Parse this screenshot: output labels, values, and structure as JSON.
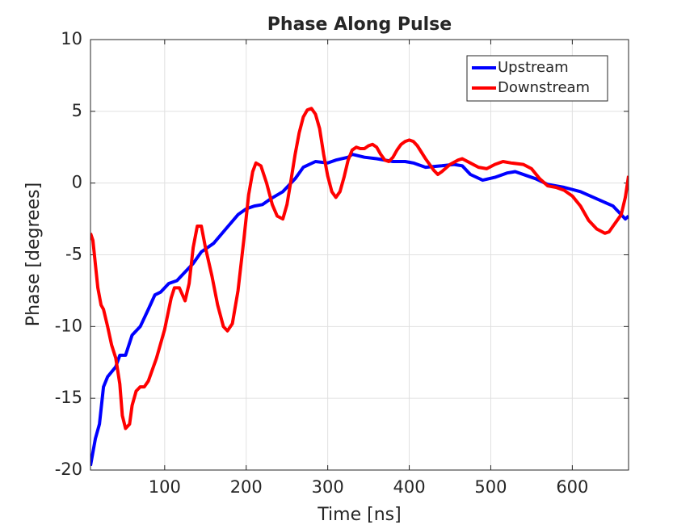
{
  "chart_data": {
    "type": "line",
    "title": "Phase Along Pulse",
    "x_label": "Time [ns]",
    "y_label": "Phase [degrees]",
    "xlim": [
      9,
      669
    ],
    "ylim": [
      -20,
      10
    ],
    "xticks": [
      100,
      200,
      300,
      400,
      500,
      600
    ],
    "yticks": [
      -20,
      -15,
      -10,
      -5,
      0,
      5,
      10
    ],
    "grid": true,
    "legend": "upper right",
    "series": [
      {
        "name": "Upstream",
        "color": "#0000ff",
        "x": [
          9,
          15,
          20,
          25,
          30,
          40,
          45,
          52,
          60,
          70,
          80,
          88,
          95,
          105,
          115,
          125,
          135,
          145,
          160,
          175,
          190,
          200,
          210,
          220,
          230,
          245,
          260,
          270,
          285,
          300,
          310,
          325,
          330,
          345,
          360,
          380,
          395,
          405,
          420,
          440,
          455,
          465,
          475,
          490,
          505,
          520,
          530,
          545,
          555,
          570,
          590,
          610,
          630,
          650,
          660,
          665,
          669
        ],
        "values": [
          -19.7,
          -17.8,
          -16.8,
          -14.2,
          -13.5,
          -12.8,
          -12.0,
          -12.0,
          -10.6,
          -10.0,
          -8.8,
          -7.8,
          -7.6,
          -7.0,
          -6.8,
          -6.2,
          -5.6,
          -4.8,
          -4.2,
          -3.2,
          -2.2,
          -1.8,
          -1.6,
          -1.5,
          -1.1,
          -0.6,
          0.3,
          1.1,
          1.5,
          1.4,
          1.6,
          1.8,
          2.0,
          1.8,
          1.7,
          1.5,
          1.5,
          1.4,
          1.1,
          1.2,
          1.3,
          1.2,
          0.6,
          0.2,
          0.4,
          0.7,
          0.8,
          0.5,
          0.3,
          -0.1,
          -0.3,
          -0.6,
          -1.1,
          -1.6,
          -2.2,
          -2.5,
          -2.3
        ]
      },
      {
        "name": "Downstream",
        "color": "#ff0000",
        "x": [
          9,
          12,
          18,
          22,
          25,
          30,
          35,
          40,
          45,
          48,
          52,
          57,
          60,
          65,
          70,
          75,
          80,
          90,
          100,
          108,
          112,
          118,
          125,
          130,
          135,
          140,
          145,
          150,
          158,
          165,
          172,
          177,
          183,
          190,
          197,
          203,
          208,
          212,
          218,
          225,
          232,
          238,
          245,
          250,
          255,
          260,
          265,
          270,
          275,
          280,
          285,
          290,
          295,
          300,
          305,
          310,
          315,
          320,
          325,
          330,
          335,
          340,
          345,
          350,
          355,
          360,
          365,
          370,
          375,
          380,
          385,
          390,
          395,
          400,
          405,
          410,
          420,
          430,
          435,
          440,
          450,
          460,
          465,
          475,
          485,
          495,
          505,
          515,
          525,
          540,
          550,
          560,
          570,
          580,
          590,
          600,
          610,
          620,
          630,
          640,
          645,
          650,
          660,
          665,
          669
        ],
        "values": [
          -3.5,
          -4.0,
          -7.3,
          -8.5,
          -8.8,
          -10.0,
          -11.3,
          -12.2,
          -14.0,
          -16.2,
          -17.1,
          -16.8,
          -15.5,
          -14.5,
          -14.2,
          -14.2,
          -13.8,
          -12.2,
          -10.2,
          -8.0,
          -7.3,
          -7.3,
          -8.2,
          -7.0,
          -4.5,
          -3.0,
          -3.0,
          -4.5,
          -6.5,
          -8.5,
          -10.0,
          -10.3,
          -9.8,
          -7.5,
          -4.0,
          -0.8,
          0.8,
          1.4,
          1.2,
          0,
          -1.5,
          -2.3,
          -2.5,
          -1.5,
          0.2,
          2.0,
          3.5,
          4.6,
          5.1,
          5.2,
          4.8,
          3.8,
          2.0,
          0.5,
          -0.6,
          -1.0,
          -0.6,
          0.4,
          1.6,
          2.3,
          2.5,
          2.4,
          2.4,
          2.6,
          2.7,
          2.5,
          2.0,
          1.6,
          1.5,
          1.8,
          2.3,
          2.7,
          2.9,
          3.0,
          2.9,
          2.6,
          1.7,
          0.9,
          0.6,
          0.8,
          1.3,
          1.6,
          1.7,
          1.4,
          1.1,
          1.0,
          1.3,
          1.5,
          1.4,
          1.3,
          1.0,
          0.3,
          -0.2,
          -0.3,
          -0.5,
          -0.9,
          -1.6,
          -2.6,
          -3.2,
          -3.5,
          -3.4,
          -3.0,
          -2.2,
          -1.0,
          0.5
        ]
      }
    ]
  }
}
